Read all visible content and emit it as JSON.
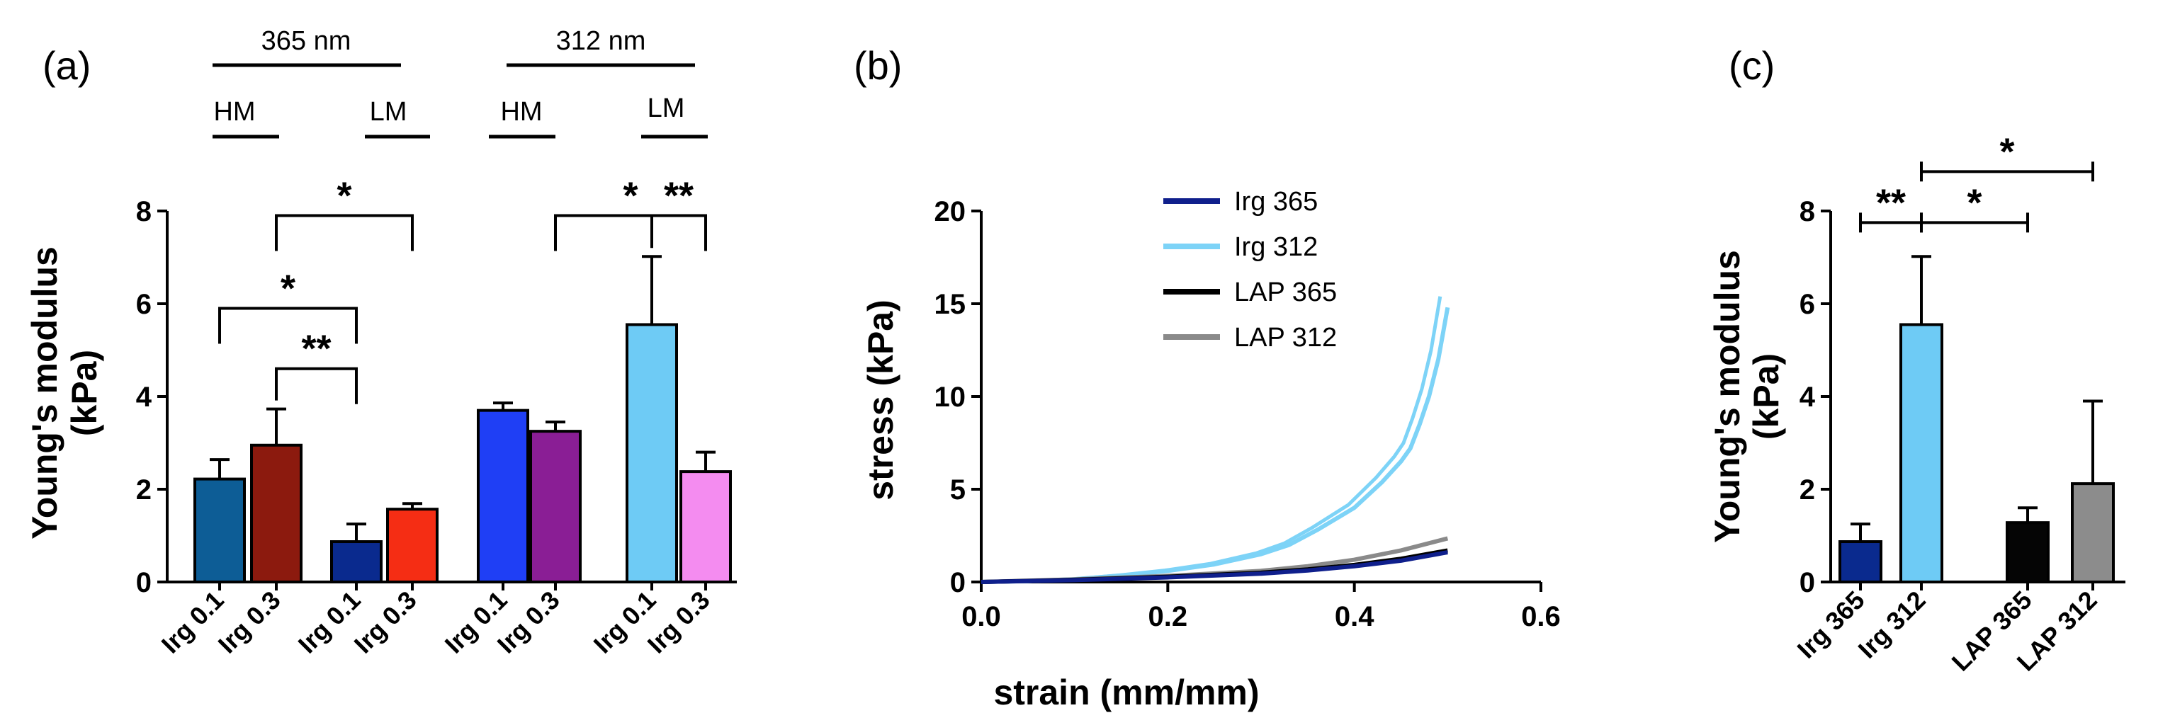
{
  "chart_data": [
    {
      "panel": "(a)",
      "type": "bar",
      "ylabel": "Young's modulus",
      "ylabel_units": "(kPa)",
      "ylim": [
        0,
        8
      ],
      "yticks": [
        0,
        2,
        4,
        6,
        8
      ],
      "groups": [
        {
          "label": "365 nm",
          "subgroups": [
            {
              "label": "HM",
              "bars": [
                0,
                1
              ]
            },
            {
              "label": "LM",
              "bars": [
                2,
                3
              ]
            }
          ]
        },
        {
          "label": "312 nm",
          "subgroups": [
            {
              "label": "HM",
              "bars": [
                4,
                5
              ]
            },
            {
              "label": "LM",
              "bars": [
                6,
                7
              ]
            }
          ]
        }
      ],
      "bars": [
        {
          "label": "Irg 0.1",
          "value": 2.22,
          "error": 0.42,
          "color": "#0d5d96"
        },
        {
          "label": "Irg 0.3",
          "value": 2.95,
          "error": 0.78,
          "color": "#8c1a0e"
        },
        {
          "label": "Irg 0.1",
          "value": 0.87,
          "error": 0.38,
          "color": "#0a2a8e"
        },
        {
          "label": "Irg 0.3",
          "value": 1.57,
          "error": 0.12,
          "color": "#f52d14"
        },
        {
          "label": "Irg 0.1",
          "value": 3.7,
          "error": 0.16,
          "color": "#1f3ff5"
        },
        {
          "label": "Irg 0.3",
          "value": 3.25,
          "error": 0.2,
          "color": "#8a1e95"
        },
        {
          "label": "Irg 0.1",
          "value": 5.55,
          "error": 1.47,
          "color": "#6ecbf5"
        },
        {
          "label": "Irg 0.3",
          "value": 2.38,
          "error": 0.42,
          "color": "#f48cf0"
        }
      ],
      "significance": [
        {
          "from": 1,
          "to": 3,
          "level": 7.9,
          "label": "*"
        },
        {
          "from": 0,
          "to": 2,
          "level": 5.9,
          "label": "*"
        },
        {
          "from": 1,
          "to": 2,
          "level": 4.6,
          "label": "**"
        },
        {
          "from": 5,
          "to": 7,
          "level": 7.9,
          "label": "*"
        },
        {
          "from": 6,
          "to": 7,
          "level": 7.9,
          "label": "**"
        }
      ]
    },
    {
      "panel": "(b)",
      "type": "line",
      "xlabel": "strain (mm/mm)",
      "ylabel": "stress (kPa)",
      "xlim": [
        0,
        0.6
      ],
      "ylim": [
        0,
        20
      ],
      "xticks": [
        "0.0",
        "0.2",
        "0.4",
        "0.6"
      ],
      "yticks": [
        0,
        5,
        10,
        15,
        20
      ],
      "legend_position": "top-left",
      "series": [
        {
          "name": "Irg 365",
          "color": "#0f1f8c",
          "x": [
            0,
            0.1,
            0.2,
            0.3,
            0.35,
            0.4,
            0.45,
            0.5
          ],
          "y": [
            0,
            0.1,
            0.25,
            0.45,
            0.62,
            0.85,
            1.15,
            1.6
          ]
        },
        {
          "name": "Irg 312",
          "color": "#7dd3f7",
          "x": [
            0,
            0.05,
            0.1,
            0.15,
            0.2,
            0.25,
            0.3,
            0.33,
            0.36,
            0.4,
            0.43,
            0.45,
            0.46,
            0.47,
            0.48,
            0.49,
            0.5
          ],
          "y": [
            0,
            0.05,
            0.15,
            0.35,
            0.6,
            0.95,
            1.5,
            2.0,
            2.8,
            4.0,
            5.4,
            6.5,
            7.2,
            8.5,
            10.0,
            12.0,
            14.8
          ]
        },
        {
          "name": "LAP 365",
          "color": "#000000",
          "x": [
            0,
            0.1,
            0.2,
            0.3,
            0.35,
            0.4,
            0.45,
            0.5
          ],
          "y": [
            0,
            0.12,
            0.28,
            0.5,
            0.68,
            0.92,
            1.25,
            1.7
          ]
        },
        {
          "name": "LAP 312",
          "color": "#8a8a8a",
          "x": [
            0,
            0.1,
            0.2,
            0.3,
            0.35,
            0.4,
            0.45,
            0.5
          ],
          "y": [
            0,
            0.14,
            0.33,
            0.6,
            0.85,
            1.2,
            1.7,
            2.35
          ]
        }
      ]
    },
    {
      "panel": "(c)",
      "type": "bar",
      "ylabel": "Young's modulus",
      "ylabel_units": "(kPa)",
      "ylim": [
        0,
        8
      ],
      "yticks": [
        0,
        2,
        4,
        6,
        8
      ],
      "bars": [
        {
          "label": "Irg 365",
          "value": 0.87,
          "error": 0.38,
          "color": "#0a2a8e"
        },
        {
          "label": "Irg 312",
          "value": 5.55,
          "error": 1.47,
          "color": "#6ecbf5"
        },
        {
          "label": "LAP 365",
          "value": 1.28,
          "error": 0.32,
          "color": "#050505"
        },
        {
          "label": "LAP 312",
          "value": 2.12,
          "error": 1.78,
          "color": "#8c8c8c"
        }
      ],
      "significance": [
        {
          "from": 0,
          "to": 1,
          "level": 7.75,
          "label": "**"
        },
        {
          "from": 1,
          "to": 2,
          "level": 7.75,
          "label": "*"
        },
        {
          "from": 1,
          "to": 3,
          "level": 8.85,
          "label": "*"
        }
      ]
    }
  ]
}
